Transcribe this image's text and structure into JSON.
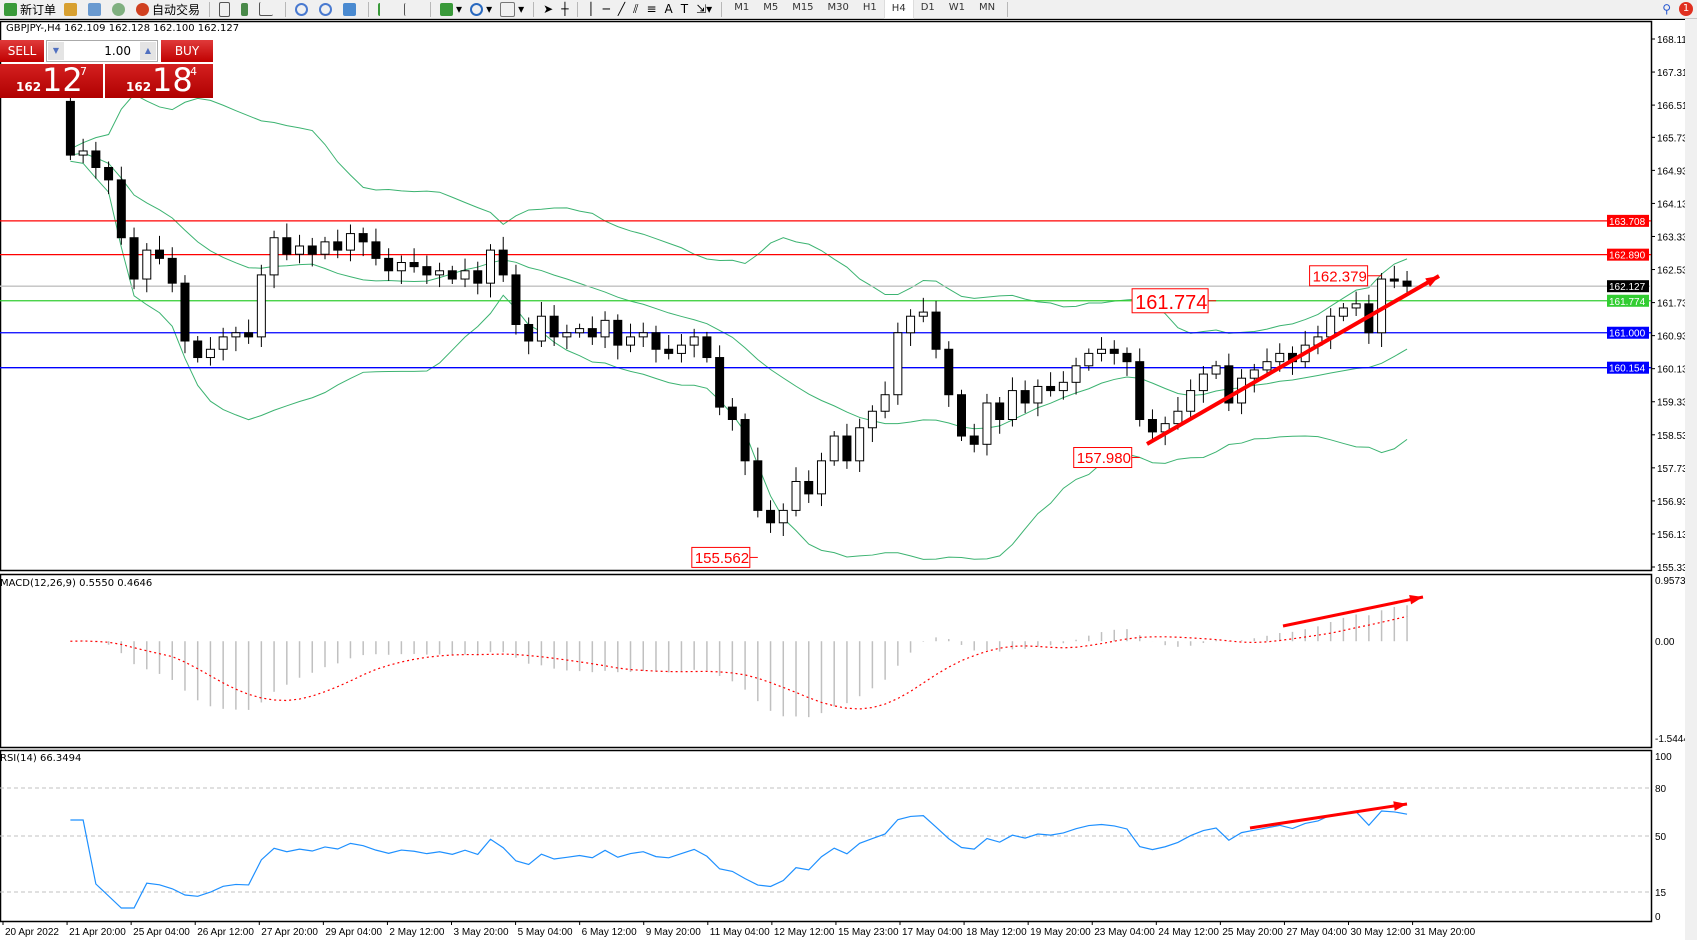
{
  "toolbar": {
    "new_order": "新订单",
    "auto_trading": "自动交易",
    "timeframes": [
      "M1",
      "M5",
      "M15",
      "M30",
      "H1",
      "H4",
      "D1",
      "W1",
      "MN"
    ],
    "active_timeframe": "H4",
    "notification_count": "1"
  },
  "chart_header": "GBPJPY-,H4  162.109 162.128 162.100 162.127",
  "trade_panel": {
    "sell_label": "SELL",
    "buy_label": "BUY",
    "lot": "1.00",
    "sell_small": "162",
    "sell_big": "12",
    "sell_pip": "7",
    "buy_small": "162",
    "buy_big": "18",
    "buy_pip": "4"
  },
  "chart_data": {
    "type": "candlestick",
    "symbol": "GBPJPY-",
    "timeframe": "H4",
    "closes": [
      165.3,
      165.4,
      165.0,
      164.7,
      163.3,
      162.3,
      163.0,
      162.8,
      162.2,
      160.8,
      160.4,
      160.6,
      160.9,
      161.0,
      160.9,
      162.4,
      163.3,
      162.9,
      163.1,
      162.9,
      163.2,
      163.0,
      163.4,
      163.2,
      162.8,
      162.5,
      162.7,
      162.6,
      162.4,
      162.5,
      162.3,
      162.5,
      162.2,
      163.0,
      162.4,
      161.2,
      160.8,
      161.4,
      160.9,
      161.0,
      161.1,
      160.9,
      161.3,
      160.7,
      160.9,
      161.0,
      160.6,
      160.5,
      160.7,
      160.9,
      160.4,
      159.2,
      158.9,
      157.9,
      156.7,
      156.4,
      156.7,
      157.4,
      157.1,
      157.9,
      158.5,
      157.9,
      158.7,
      159.1,
      159.5,
      161.0,
      161.4,
      161.5,
      160.6,
      159.5,
      158.5,
      158.3,
      159.3,
      158.9,
      159.6,
      159.3,
      159.7,
      159.6,
      159.8,
      160.2,
      160.5,
      160.6,
      160.5,
      160.3,
      158.9,
      158.6,
      158.8,
      159.1,
      159.6,
      160.0,
      160.2,
      159.3,
      159.9,
      160.1,
      160.3,
      160.5,
      160.3,
      160.7,
      160.9,
      161.4,
      161.6,
      161.7,
      161.0,
      162.3,
      162.25,
      162.127
    ],
    "first_open": 166.6,
    "price_axis_ticks": [
      "168.110",
      "167.310",
      "166.510",
      "165.730",
      "164.930",
      "164.130",
      "163.330",
      "162.530",
      "161.730",
      "160.930",
      "160.130",
      "159.330",
      "158.530",
      "157.730",
      "156.930",
      "156.130",
      "155.330"
    ],
    "price_range": [
      155.33,
      168.11
    ],
    "horizontal_lines": [
      {
        "price": "163.708",
        "color": "#ff0000"
      },
      {
        "price": "162.890",
        "color": "#ff0000"
      },
      {
        "price": "162.127",
        "color": "#000000",
        "line_color": "#c0c0c0"
      },
      {
        "price": "161.774",
        "color": "#32cd32"
      },
      {
        "price": "161.000",
        "color": "#0000ff"
      },
      {
        "price": "160.154",
        "color": "#0000ff"
      }
    ],
    "price_annotations": [
      {
        "text": "162.379",
        "index": 103,
        "price": 162.379,
        "size": "normal"
      },
      {
        "text": "161.774",
        "index": 90,
        "price": 161.774,
        "size": "large"
      },
      {
        "text": "157.980",
        "index": 84,
        "price": 157.98,
        "size": "normal"
      },
      {
        "text": "155.562",
        "index": 54,
        "price": 155.562,
        "size": "normal"
      }
    ],
    "bollinger": {
      "period": 20,
      "deviation": 2,
      "color": "#3cb371"
    },
    "time_labels": [
      "20 Apr 2022",
      "21 Apr 20:00",
      "25 Apr 04:00",
      "26 Apr 12:00",
      "27 Apr 20:00",
      "29 Apr 04:00",
      "2 May 12:00",
      "3 May 20:00",
      "5 May 04:00",
      "6 May 12:00",
      "9 May 20:00",
      "11 May 04:00",
      "12 May 12:00",
      "15 May 23:00",
      "17 May 04:00",
      "18 May 12:00",
      "19 May 20:00",
      "23 May 04:00",
      "24 May 12:00",
      "25 May 20:00",
      "27 May 04:00",
      "30 May 12:00",
      "31 May 20:00"
    ],
    "macd": {
      "label": "MACD(12,26,9) 0.5550 0.4646",
      "range": [
        -1.5444,
        0.9573
      ],
      "ticks": [
        "0.9573",
        "0.00",
        "-1.5444"
      ],
      "histogram_color": "#c0c0c0",
      "signal_color": "#ff0000"
    },
    "rsi": {
      "label": "RSI(14) 66.3494",
      "range": [
        0,
        100
      ],
      "ticks": [
        "100",
        "80",
        "50",
        "15",
        "0"
      ],
      "levels": [
        80,
        50,
        15
      ],
      "color": "#1e90ff"
    },
    "accent": "#ff0000"
  }
}
